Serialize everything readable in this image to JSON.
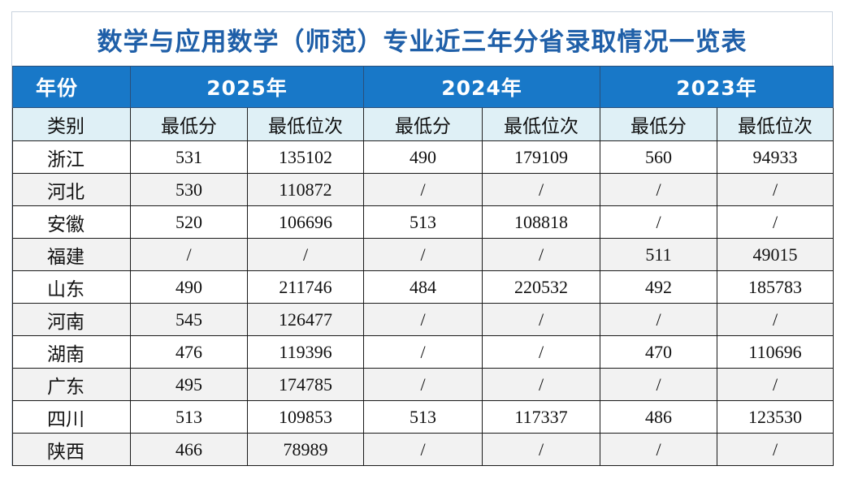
{
  "title": "数学与应用数学（师范）专业近三年分省录取情况一览表",
  "header": {
    "year_label": "年份",
    "years": [
      "2025年",
      "2024年",
      "2023年"
    ],
    "category_label": "类别",
    "sub_columns": [
      "最低分",
      "最低位次",
      "最低分",
      "最低位次",
      "最低分",
      "最低位次"
    ]
  },
  "rows": [
    {
      "province": "浙江",
      "values": [
        "531",
        "135102",
        "490",
        "179109",
        "560",
        "94933"
      ]
    },
    {
      "province": "河北",
      "values": [
        "530",
        "110872",
        "/",
        "/",
        "/",
        "/"
      ]
    },
    {
      "province": "安徽",
      "values": [
        "520",
        "106696",
        "513",
        "108818",
        "/",
        "/"
      ]
    },
    {
      "province": "福建",
      "values": [
        "/",
        "/",
        "/",
        "/",
        "511",
        "49015"
      ]
    },
    {
      "province": "山东",
      "values": [
        "490",
        "211746",
        "484",
        "220532",
        "492",
        "185783"
      ]
    },
    {
      "province": "河南",
      "values": [
        "545",
        "126477",
        "/",
        "/",
        "/",
        "/"
      ]
    },
    {
      "province": "湖南",
      "values": [
        "476",
        "119396",
        "/",
        "/",
        "470",
        "110696"
      ]
    },
    {
      "province": "广东",
      "values": [
        "495",
        "174785",
        "/",
        "/",
        "/",
        "/"
      ]
    },
    {
      "province": "四川",
      "values": [
        "513",
        "109853",
        "513",
        "117337",
        "486",
        "123530"
      ]
    },
    {
      "province": "陕西",
      "values": [
        "466",
        "78989",
        "/",
        "/",
        "/",
        "/"
      ]
    }
  ]
}
